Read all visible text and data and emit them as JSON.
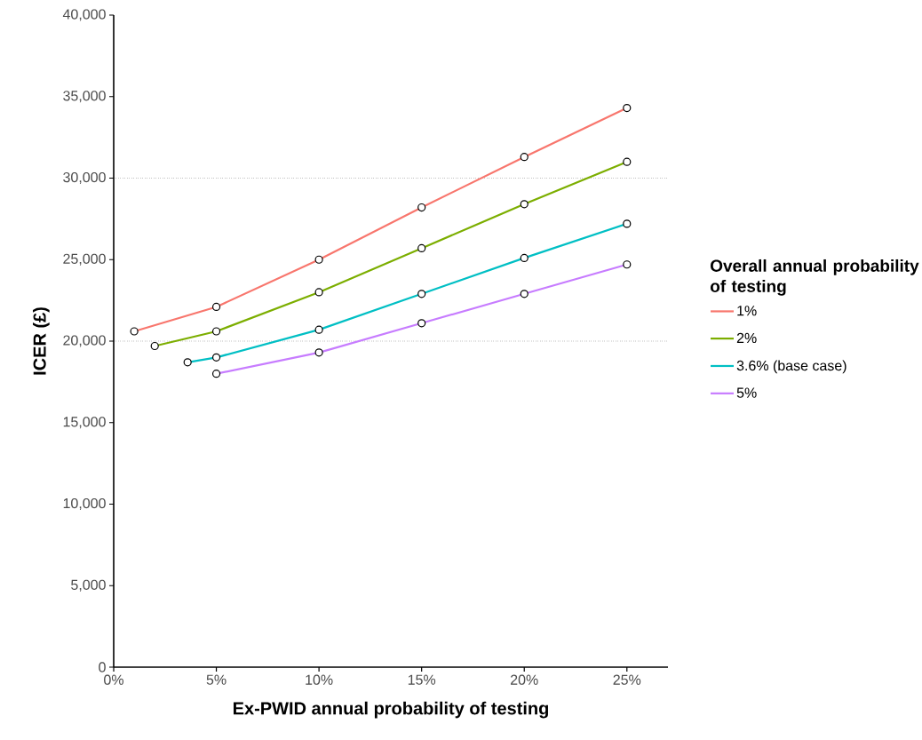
{
  "chart_data": {
    "type": "line",
    "xlabel": "Ex-PWID annual probability of testing",
    "ylabel": "ICER (£)",
    "legend_title": "Overall annual probability of testing",
    "series": [
      {
        "name": "1%",
        "color": "#f8766d",
        "x": [
          1,
          5,
          10,
          15,
          20,
          25
        ],
        "values": [
          20600,
          22100,
          25000,
          28200,
          31300,
          34300
        ]
      },
      {
        "name": "2%",
        "color": "#7cae00",
        "x": [
          2,
          5,
          10,
          15,
          20,
          25
        ],
        "values": [
          19700,
          20600,
          23000,
          25700,
          28400,
          31000
        ]
      },
      {
        "name": "3.6% (base case)",
        "color": "#00bfc4",
        "x": [
          3.6,
          5,
          10,
          15,
          20,
          25
        ],
        "values": [
          18700,
          19000,
          20700,
          22900,
          25100,
          27200
        ]
      },
      {
        "name": "5%",
        "color": "#c77cff",
        "x": [
          5,
          10,
          15,
          20,
          25
        ],
        "values": [
          18000,
          19300,
          21100,
          22900,
          24700
        ]
      }
    ],
    "xlim": [
      0,
      27
    ],
    "ylim": [
      0,
      40000
    ],
    "xticks": [
      {
        "value": 0,
        "label": "0%"
      },
      {
        "value": 5,
        "label": "5%"
      },
      {
        "value": 10,
        "label": "10%"
      },
      {
        "value": 15,
        "label": "15%"
      },
      {
        "value": 20,
        "label": "20%"
      },
      {
        "value": 25,
        "label": "25%"
      }
    ],
    "yticks": [
      0,
      {
        "value": 5000,
        "label": "5,000"
      },
      {
        "value": 10000,
        "label": "10,000"
      },
      {
        "value": 15000,
        "label": "15,000"
      },
      {
        "value": 20000,
        "label": "20,000"
      },
      {
        "value": 25000,
        "label": "25,000"
      },
      {
        "value": 30000,
        "label": "30,000"
      },
      {
        "value": 35000,
        "label": "35,000"
      },
      {
        "value": 40000,
        "label": "40,000"
      }
    ],
    "ref_lines": [
      {
        "axis": "y",
        "value": 20000,
        "line_style": "dotted"
      },
      {
        "axis": "y",
        "value": 30000,
        "line_style": "dotted"
      }
    ],
    "marker": "circle",
    "line_style": "solid",
    "legend": "right",
    "grid": false
  }
}
